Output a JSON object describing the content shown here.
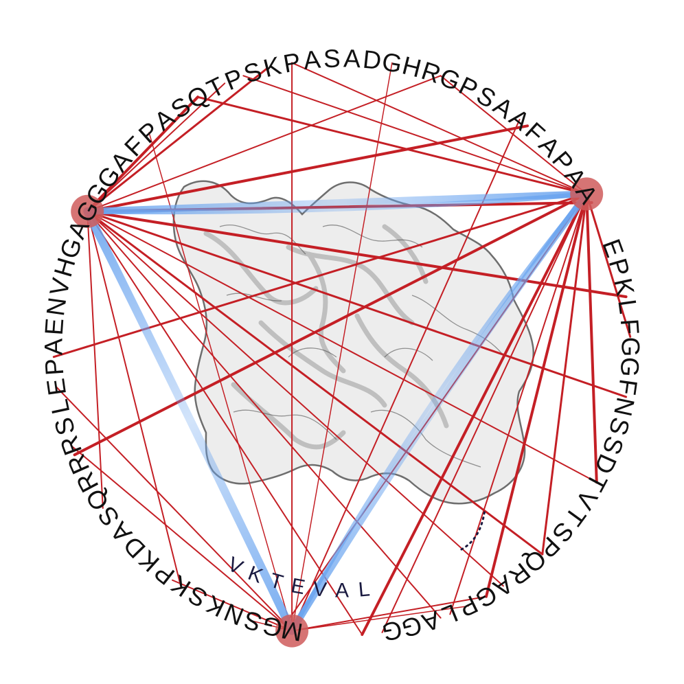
{
  "colors": {
    "background": "#ffffff",
    "red_link": "#c41f25",
    "blue_link": "#6aa4ef",
    "hub_node": "#cf5c5c",
    "protein_fill": "#ebebeb",
    "protein_stroke": "#555555",
    "letters": "#111111"
  },
  "sequence_ring": {
    "arcs": [
      {
        "text": "MGSNKSKPKDASQRRRSLEPAENVHGAGGGAFPASQTPSKPASADGHRGPSAAFAPAA"
      },
      {
        "text": "EPKLFGGFNSSDTVTSPQRAGPLAGG"
      }
    ],
    "flank_text": "VKTEVAL"
  },
  "hubs": [
    {
      "name": "hub-m",
      "residue": "M"
    },
    {
      "name": "hub-a-left",
      "residue": "A"
    },
    {
      "name": "hub-a-right",
      "residue": "A"
    }
  ],
  "icons": [
    "protein-surface-icon"
  ]
}
